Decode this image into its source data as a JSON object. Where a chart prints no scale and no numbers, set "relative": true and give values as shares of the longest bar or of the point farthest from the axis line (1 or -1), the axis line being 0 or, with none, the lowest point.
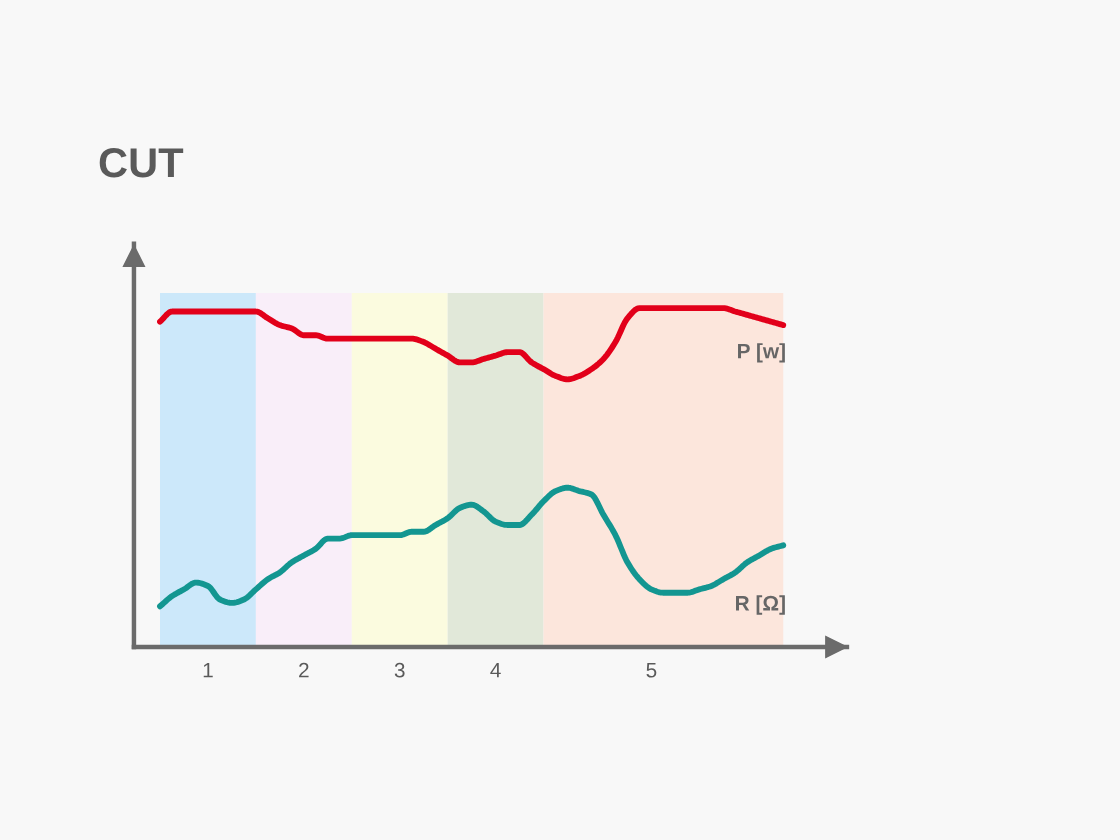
{
  "chart_data": {
    "type": "line",
    "title": "CUT",
    "relative": true,
    "marker": "none",
    "line_style": "solid",
    "categories": [
      null,
      null,
      null,
      null,
      "1",
      null,
      null,
      null,
      null,
      null,
      null,
      null,
      "2",
      null,
      null,
      null,
      null,
      null,
      null,
      null,
      "3",
      null,
      null,
      null,
      null,
      null,
      null,
      null,
      "4",
      null,
      null,
      null,
      null,
      null,
      null,
      null,
      null,
      null,
      null,
      null,
      null,
      "5",
      null,
      null,
      null,
      null,
      null,
      null,
      null,
      null,
      null,
      null,
      null
    ],
    "series": [
      {
        "name": "P [w]",
        "color": "#e2001a",
        "values": [
          0.96,
          0.99,
          0.99,
          0.99,
          0.99,
          0.99,
          0.99,
          0.99,
          0.99,
          0.97,
          0.95,
          0.94,
          0.92,
          0.92,
          0.91,
          0.91,
          0.91,
          0.91,
          0.91,
          0.91,
          0.91,
          0.91,
          0.9,
          0.88,
          0.86,
          0.84,
          0.84,
          0.85,
          0.86,
          0.87,
          0.87,
          0.84,
          0.82,
          0.8,
          0.79,
          0.8,
          0.82,
          0.85,
          0.9,
          0.97,
          1.0,
          1.0,
          1.0,
          1.0,
          1.0,
          1.0,
          1.0,
          1.0,
          0.99,
          0.98,
          0.97,
          0.96,
          0.95
        ]
      },
      {
        "name": "R [Ω]",
        "color": "#139691",
        "values": [
          0.12,
          0.15,
          0.17,
          0.19,
          0.18,
          0.14,
          0.13,
          0.14,
          0.17,
          0.2,
          0.22,
          0.25,
          0.27,
          0.29,
          0.32,
          0.32,
          0.33,
          0.33,
          0.33,
          0.33,
          0.33,
          0.34,
          0.34,
          0.36,
          0.38,
          0.41,
          0.42,
          0.4,
          0.37,
          0.36,
          0.36,
          0.39,
          0.43,
          0.46,
          0.47,
          0.46,
          0.45,
          0.39,
          0.33,
          0.25,
          0.2,
          0.17,
          0.16,
          0.16,
          0.16,
          0.17,
          0.18,
          0.2,
          0.22,
          0.25,
          0.27,
          0.29,
          0.3
        ]
      }
    ]
  }
}
